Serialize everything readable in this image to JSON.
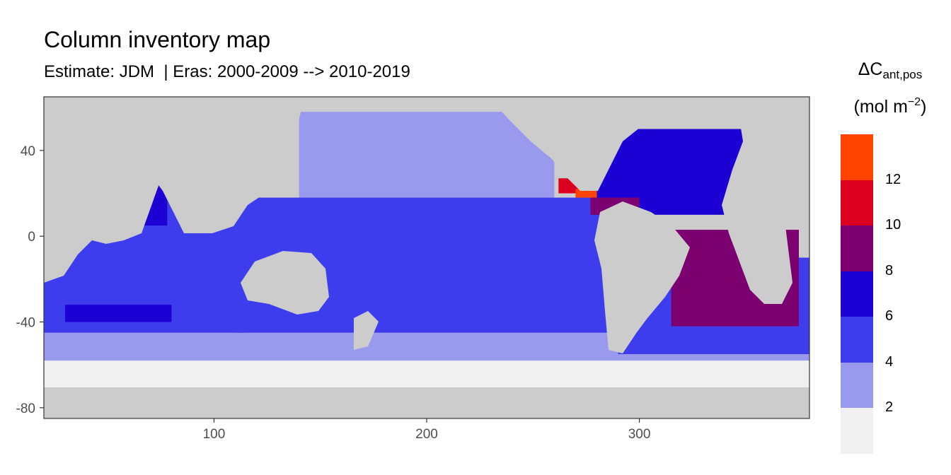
{
  "header": {
    "title": "Column inventory map",
    "subtitle": "Estimate: JDM  | Eras: 2000-2009 --> 2010-2019"
  },
  "legend": {
    "symbol": "ΔC",
    "subscript": "ant,pos",
    "unit_open": "(mol m",
    "unit_sup": "−2",
    "unit_close": ")",
    "labels": [
      "12",
      "10",
      "8",
      "6",
      "4",
      "2"
    ]
  },
  "chart_data": {
    "type": "heatmap",
    "title": "Column inventory map",
    "subtitle": "Estimate: JDM  | Eras: 2000-2009 --> 2010-2019",
    "xlabel": "",
    "ylabel": "",
    "xlim": [
      20,
      380
    ],
    "ylim": [
      -85,
      65
    ],
    "x_ticks": [
      100,
      200,
      300
    ],
    "y_ticks": [
      -80,
      -40,
      0,
      40
    ],
    "grid": false,
    "legend_position": "right",
    "land_color": "#cccccc",
    "panel_border": "#333333",
    "bins": [
      {
        "range": "0-2",
        "color": "#f0f0f0"
      },
      {
        "range": "2-4",
        "color": "#9999ee"
      },
      {
        "range": "4-6",
        "color": "#3d3dee"
      },
      {
        "range": "6-8",
        "color": "#1c00d4"
      },
      {
        "range": "8-10",
        "color": "#7c0070"
      },
      {
        "range": "10-12",
        "color": "#dc0020"
      },
      {
        "range": "12-14",
        "color": "#ff4400"
      }
    ],
    "regions": [
      {
        "name": "Southern Ocean margin",
        "bin": "0-2",
        "x": [
          20,
          380
        ],
        "y": [
          -78,
          -58
        ]
      },
      {
        "name": "Southern Ocean",
        "bin": "2-4",
        "x": [
          20,
          380
        ],
        "y": [
          -58,
          -45
        ]
      },
      {
        "name": "North Pacific",
        "bin": "2-4",
        "x": [
          140,
          260
        ],
        "y": [
          18,
          58
        ]
      },
      {
        "name": "Indian Ocean",
        "bin": "4-6",
        "x": [
          20,
          115
        ],
        "y": [
          -45,
          25
        ]
      },
      {
        "name": "Pacific Ocean",
        "bin": "4-6",
        "x": [
          110,
          290
        ],
        "y": [
          -45,
          18
        ]
      },
      {
        "name": "South Atlantic",
        "bin": "4-6",
        "x": [
          290,
          380
        ],
        "y": [
          -55,
          -10
        ]
      },
      {
        "name": "North Atlantic",
        "bin": "6-8",
        "x": [
          280,
          360
        ],
        "y": [
          10,
          50
        ]
      },
      {
        "name": "Arabian Sea",
        "bin": "6-8",
        "x": [
          55,
          78
        ],
        "y": [
          5,
          25
        ]
      },
      {
        "name": "Southern Indian band",
        "bin": "6-8",
        "x": [
          30,
          80
        ],
        "y": [
          -40,
          -32
        ]
      },
      {
        "name": "South Atlantic interior",
        "bin": "8-10",
        "x": [
          315,
          375
        ],
        "y": [
          -42,
          3
        ]
      },
      {
        "name": "Caribbean",
        "bin": "8-10",
        "x": [
          277,
          300
        ],
        "y": [
          10,
          18
        ]
      },
      {
        "name": "Gulf of Mexico",
        "bin": "10-12",
        "x": [
          262,
          280
        ],
        "y": [
          20,
          27
        ]
      },
      {
        "name": "Gulf of Mexico core",
        "bin": "12-14",
        "x": [
          270,
          280
        ],
        "y": [
          18,
          22
        ]
      }
    ]
  }
}
